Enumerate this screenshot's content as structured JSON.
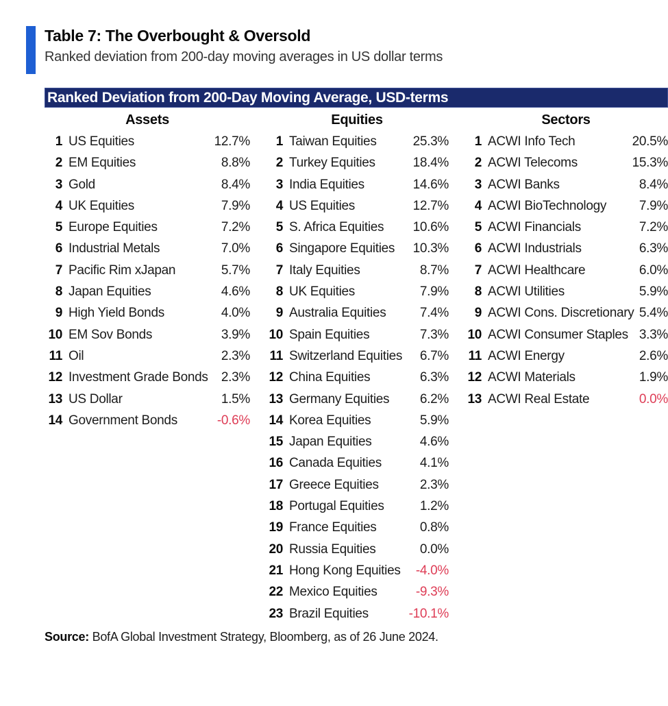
{
  "page": {
    "title": "Table 7: The Overbought & Oversold",
    "subtitle": "Ranked deviation from 200-day moving averages in US dollar terms",
    "banner": "Ranked Deviation from 200-Day Moving Average, USD-terms",
    "source_label": "Source:",
    "source_text": " BofA Global Investment Strategy, Bloomberg, as of 26 June 2024."
  },
  "colors": {
    "banner_bg": "#1a2a6c",
    "accent_bar": "#1e5fd3",
    "negative_value": "#de3d56",
    "text": "#1c1c1c"
  },
  "chart_data": {
    "type": "table",
    "title": "Ranked Deviation from 200-Day Moving Average, USD-terms",
    "columns": [
      {
        "header": "Assets",
        "rows": [
          {
            "rank": "1",
            "name": "US Equities",
            "value": "12.7%",
            "negative": false
          },
          {
            "rank": "2",
            "name": "EM Equities",
            "value": "8.8%",
            "negative": false
          },
          {
            "rank": "3",
            "name": "Gold",
            "value": "8.4%",
            "negative": false
          },
          {
            "rank": "4",
            "name": "UK Equities",
            "value": "7.9%",
            "negative": false
          },
          {
            "rank": "5",
            "name": "Europe Equities",
            "value": "7.2%",
            "negative": false
          },
          {
            "rank": "6",
            "name": "Industrial Metals",
            "value": "7.0%",
            "negative": false
          },
          {
            "rank": "7",
            "name": "Pacific Rim xJapan",
            "value": "5.7%",
            "negative": false
          },
          {
            "rank": "8",
            "name": "Japan Equities",
            "value": "4.6%",
            "negative": false
          },
          {
            "rank": "9",
            "name": "High Yield Bonds",
            "value": "4.0%",
            "negative": false
          },
          {
            "rank": "10",
            "name": "EM Sov Bonds",
            "value": "3.9%",
            "negative": false
          },
          {
            "rank": "11",
            "name": "Oil",
            "value": "2.3%",
            "negative": false
          },
          {
            "rank": "12",
            "name": "Investment Grade Bonds",
            "value": "2.3%",
            "negative": false
          },
          {
            "rank": "13",
            "name": "US Dollar",
            "value": "1.5%",
            "negative": false
          },
          {
            "rank": "14",
            "name": "Government Bonds",
            "value": "-0.6%",
            "negative": true
          }
        ]
      },
      {
        "header": "Equities",
        "rows": [
          {
            "rank": "1",
            "name": "Taiwan Equities",
            "value": "25.3%",
            "negative": false
          },
          {
            "rank": "2",
            "name": "Turkey Equities",
            "value": "18.4%",
            "negative": false
          },
          {
            "rank": "3",
            "name": "India Equities",
            "value": "14.6%",
            "negative": false
          },
          {
            "rank": "4",
            "name": "US Equities",
            "value": "12.7%",
            "negative": false
          },
          {
            "rank": "5",
            "name": "S. Africa Equities",
            "value": "10.6%",
            "negative": false
          },
          {
            "rank": "6",
            "name": "Singapore Equities",
            "value": "10.3%",
            "negative": false
          },
          {
            "rank": "7",
            "name": "Italy Equities",
            "value": "8.7%",
            "negative": false
          },
          {
            "rank": "8",
            "name": "UK Equities",
            "value": "7.9%",
            "negative": false
          },
          {
            "rank": "9",
            "name": "Australia Equities",
            "value": "7.4%",
            "negative": false
          },
          {
            "rank": "10",
            "name": "Spain Equities",
            "value": "7.3%",
            "negative": false
          },
          {
            "rank": "11",
            "name": "Switzerland Equities",
            "value": "6.7%",
            "negative": false
          },
          {
            "rank": "12",
            "name": "China Equities",
            "value": "6.3%",
            "negative": false
          },
          {
            "rank": "13",
            "name": "Germany Equities",
            "value": "6.2%",
            "negative": false
          },
          {
            "rank": "14",
            "name": "Korea Equities",
            "value": "5.9%",
            "negative": false
          },
          {
            "rank": "15",
            "name": "Japan Equities",
            "value": "4.6%",
            "negative": false
          },
          {
            "rank": "16",
            "name": "Canada Equities",
            "value": "4.1%",
            "negative": false
          },
          {
            "rank": "17",
            "name": "Greece Equities",
            "value": "2.3%",
            "negative": false
          },
          {
            "rank": "18",
            "name": "Portugal Equities",
            "value": "1.2%",
            "negative": false
          },
          {
            "rank": "19",
            "name": "France Equities",
            "value": "0.8%",
            "negative": false
          },
          {
            "rank": "20",
            "name": "Russia Equities",
            "value": "0.0%",
            "negative": false
          },
          {
            "rank": "21",
            "name": "Hong Kong Equities",
            "value": "-4.0%",
            "negative": true
          },
          {
            "rank": "22",
            "name": "Mexico Equities",
            "value": "-9.3%",
            "negative": true
          },
          {
            "rank": "23",
            "name": "Brazil Equities",
            "value": "-10.1%",
            "negative": true
          }
        ]
      },
      {
        "header": "Sectors",
        "rows": [
          {
            "rank": "1",
            "name": "ACWI Info Tech",
            "value": "20.5%",
            "negative": false
          },
          {
            "rank": "2",
            "name": "ACWI Telecoms",
            "value": "15.3%",
            "negative": false
          },
          {
            "rank": "3",
            "name": "ACWI Banks",
            "value": "8.4%",
            "negative": false
          },
          {
            "rank": "4",
            "name": "ACWI BioTechnology",
            "value": "7.9%",
            "negative": false
          },
          {
            "rank": "5",
            "name": "ACWI Financials",
            "value": "7.2%",
            "negative": false
          },
          {
            "rank": "6",
            "name": "ACWI Industrials",
            "value": "6.3%",
            "negative": false
          },
          {
            "rank": "7",
            "name": "ACWI Healthcare",
            "value": "6.0%",
            "negative": false
          },
          {
            "rank": "8",
            "name": "ACWI Utilities",
            "value": "5.9%",
            "negative": false
          },
          {
            "rank": "9",
            "name": "ACWI Cons. Discretionary",
            "value": "5.4%",
            "negative": false
          },
          {
            "rank": "10",
            "name": "ACWI Consumer Staples",
            "value": "3.3%",
            "negative": false
          },
          {
            "rank": "11",
            "name": "ACWI Energy",
            "value": "2.6%",
            "negative": false
          },
          {
            "rank": "12",
            "name": "ACWI Materials",
            "value": "1.9%",
            "negative": false
          },
          {
            "rank": "13",
            "name": "ACWI Real Estate",
            "value": "0.0%",
            "negative": true
          }
        ]
      }
    ]
  }
}
